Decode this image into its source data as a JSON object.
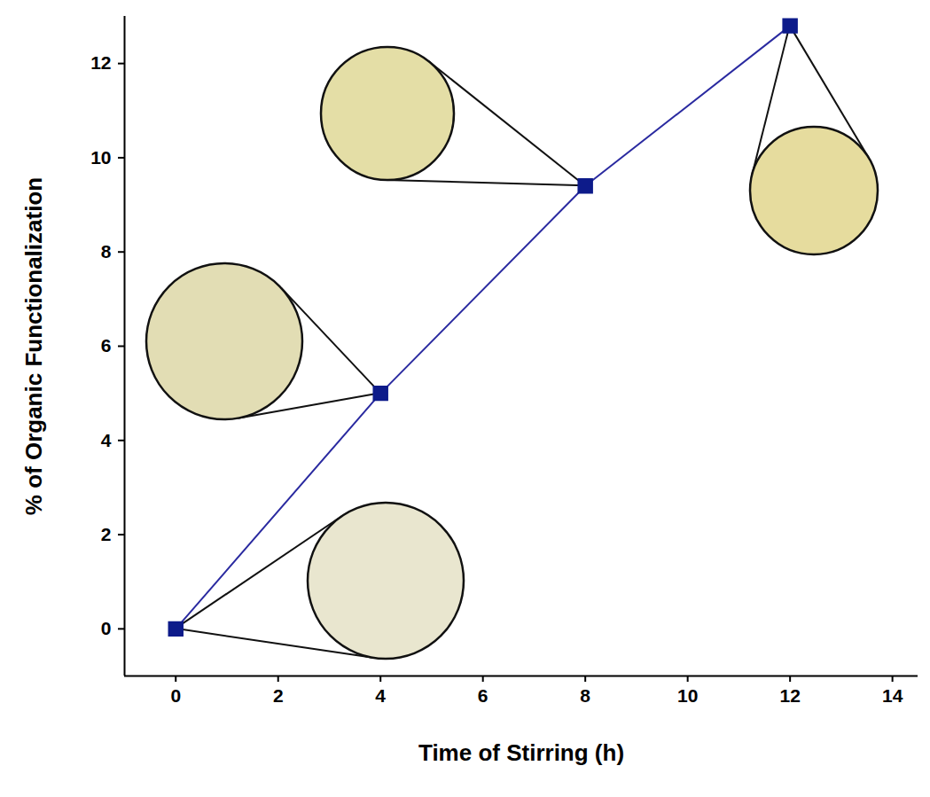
{
  "chart_data": {
    "type": "line",
    "x_label": "Time of Stirring (h)",
    "y_label": "% of Organic Functionalization",
    "x": [
      0,
      4,
      8,
      12
    ],
    "values": [
      0,
      5,
      9.4,
      12.8
    ],
    "color": "#0d1b8a",
    "marker": "square",
    "line_style": "solid",
    "xlim": [
      -1,
      14.5
    ],
    "xticks": [
      0,
      2,
      4,
      6,
      8,
      10,
      12,
      14
    ],
    "ylim": [
      -1,
      13
    ],
    "yticks": [
      0,
      2,
      4,
      6,
      8,
      10,
      12
    ],
    "grid": false
  }
}
